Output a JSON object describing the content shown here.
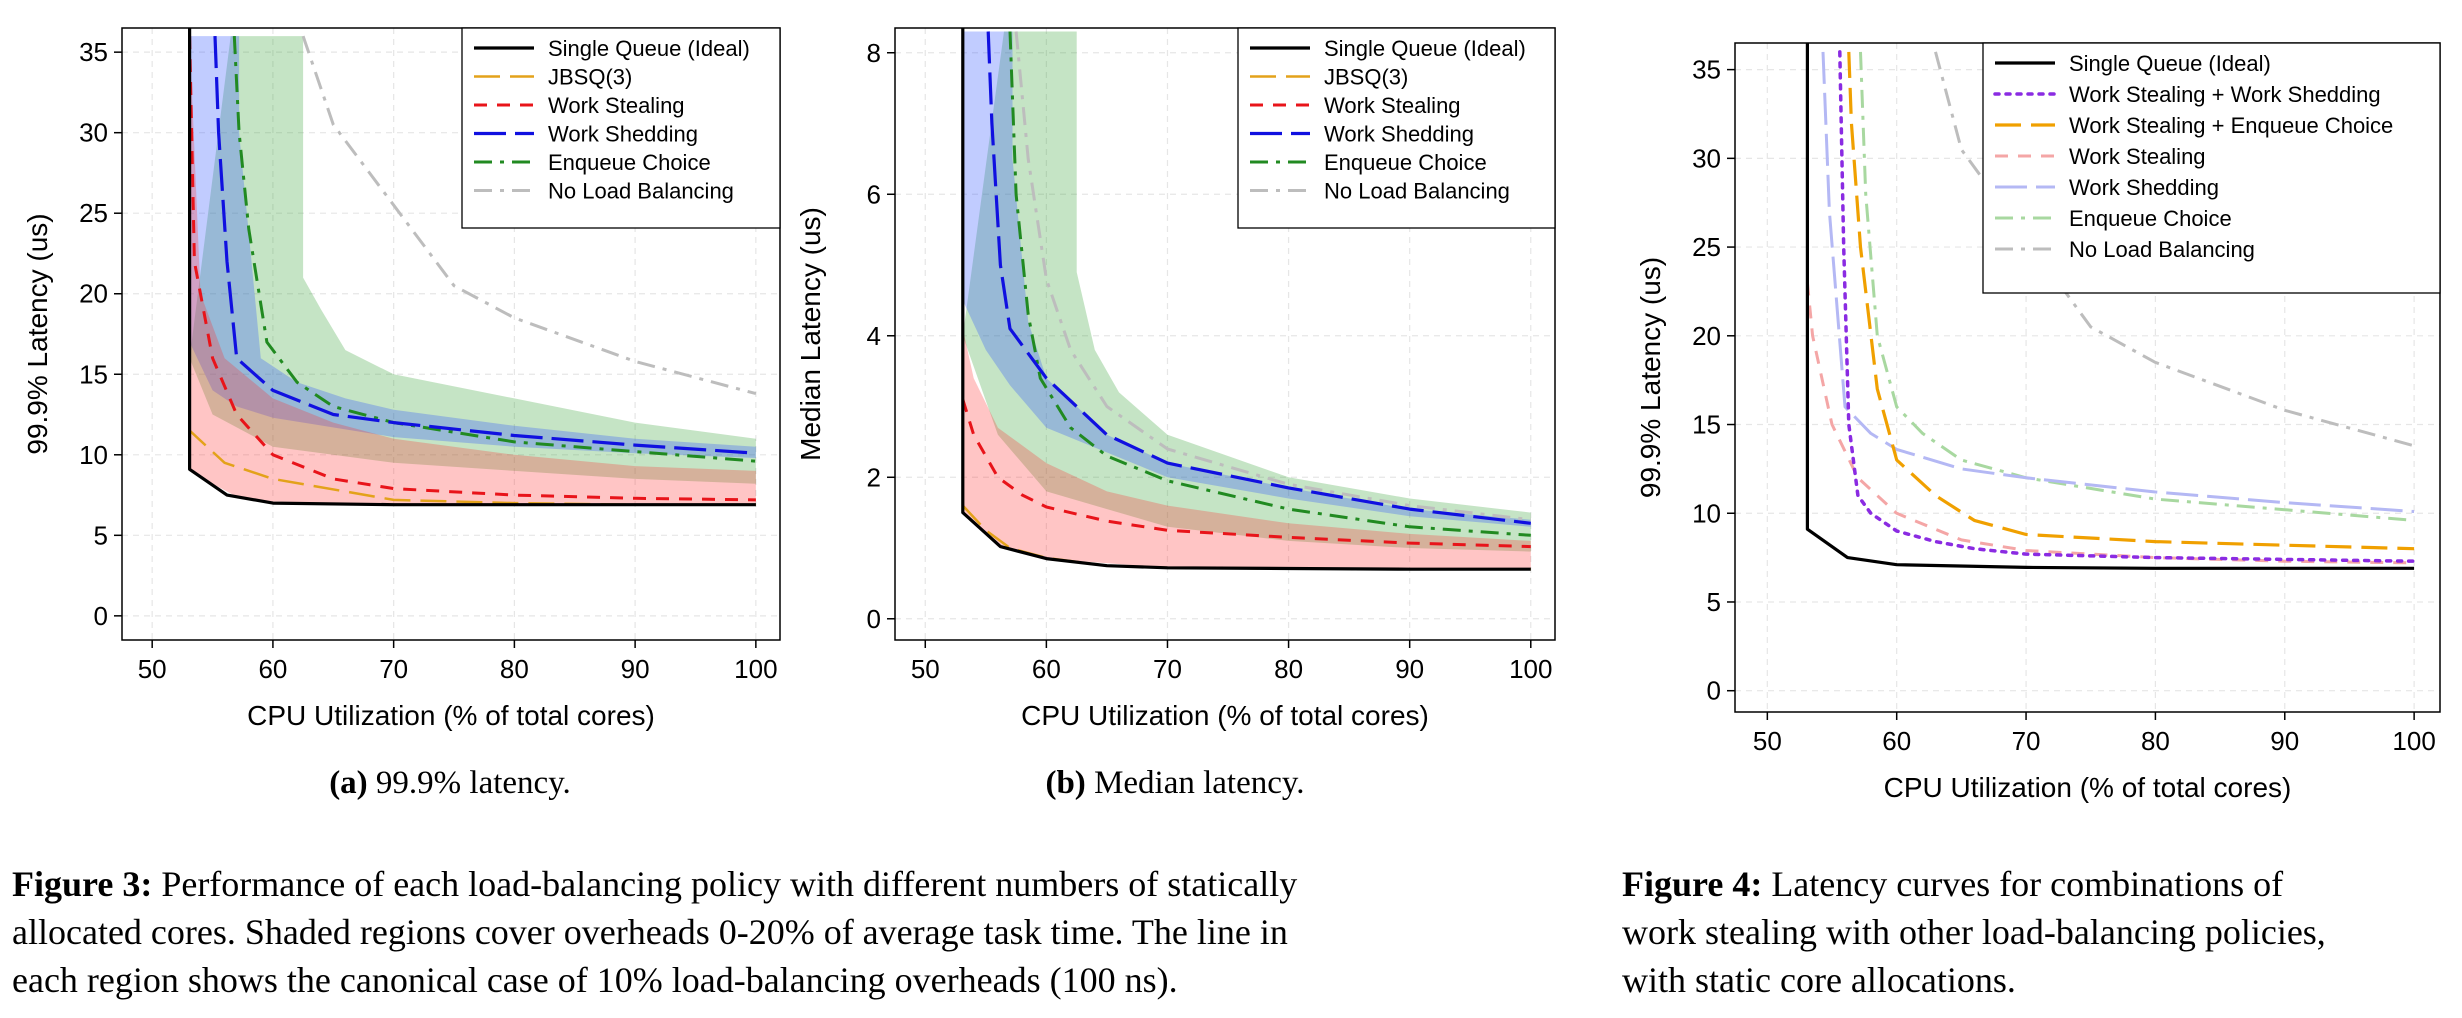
{
  "chart_data": [
    {
      "id": "fig3a",
      "type": "line",
      "xlabel": "CPU Utilization (% of total cores)",
      "ylabel": "99.9% Latency (us)",
      "xlim": [
        47.5,
        102
      ],
      "ylim": [
        -1.5,
        36.5
      ],
      "xticks": [
        50,
        60,
        70,
        80,
        90,
        100
      ],
      "yticks": [
        0,
        5,
        10,
        15,
        20,
        25,
        30,
        35
      ],
      "grid": true,
      "legend_position": "top-right",
      "series": [
        {
          "name": "Single Queue (Ideal)",
          "color": "#000000",
          "dash": "solid",
          "width": 3.2,
          "x": [
            53.1,
            53.1,
            56.2,
            60,
            70,
            80,
            90,
            100
          ],
          "y": [
            40,
            9.1,
            7.5,
            7.0,
            6.9,
            6.9,
            6.9,
            6.9
          ]
        },
        {
          "name": "JBSQ(3)",
          "color": "#E3A21A",
          "dash": "long",
          "width": 2.5,
          "x": [
            53.1,
            53.1,
            56,
            60,
            70,
            80,
            90,
            100
          ],
          "y": [
            14,
            11.5,
            9.5,
            8.5,
            7.2,
            7.0,
            6.9,
            6.9
          ]
        },
        {
          "name": "Work Stealing",
          "color": "#E8141A",
          "dash": "medium",
          "width": 3,
          "x": [
            53.1,
            53.5,
            55,
            57,
            60,
            65,
            70,
            80,
            90,
            100
          ],
          "y": [
            36,
            22,
            16,
            12.5,
            10,
            8.5,
            7.9,
            7.5,
            7.3,
            7.2
          ]
        },
        {
          "name": "Work Shedding",
          "color": "#1010E0",
          "dash": "longdash",
          "width": 3.2,
          "x": [
            55.2,
            55.5,
            56.2,
            57,
            60,
            65,
            70,
            80,
            90,
            100
          ],
          "y": [
            36,
            30,
            22,
            16,
            14,
            12.5,
            12.0,
            11.2,
            10.6,
            10.1
          ]
        },
        {
          "name": "Enqueue Choice",
          "color": "#218A21",
          "dash": "dashdot",
          "width": 3,
          "x": [
            56.8,
            57.2,
            58,
            59.5,
            62,
            65,
            70,
            80,
            90,
            100
          ],
          "y": [
            36,
            30,
            24,
            17,
            14.5,
            13,
            12,
            10.8,
            10.2,
            9.6
          ]
        },
        {
          "name": "No Load Balancing",
          "color": "#BDBDBD",
          "dash": "dashdot",
          "width": 3,
          "x": [
            62.5,
            65,
            70,
            75,
            80,
            90,
            100
          ],
          "y": [
            36,
            30.5,
            25.5,
            20.5,
            18.5,
            15.8,
            13.8
          ]
        }
      ],
      "bands": [
        {
          "series": "Enqueue Choice",
          "color": "#2E9E2E",
          "opacity": 0.28,
          "upper_x": [
            56.5,
            62.5,
            62.5,
            64,
            66,
            70,
            80,
            90,
            100
          ],
          "upper_y": [
            36,
            36,
            21,
            19,
            16.5,
            15,
            13.5,
            12,
            11
          ],
          "lower_x": [
            100,
            90,
            80,
            70,
            60,
            55,
            53.1
          ],
          "lower_y": [
            8.2,
            8.5,
            9.0,
            9.5,
            10.5,
            12.5,
            16
          ]
        },
        {
          "series": "Work Shedding",
          "color": "#3355FF",
          "opacity": 0.3,
          "upper_x": [
            53.1,
            57.2,
            57.2,
            59,
            62,
            66,
            70,
            80,
            90,
            100
          ],
          "upper_y": [
            36,
            36,
            30,
            16,
            14.5,
            13.5,
            12.8,
            11.8,
            11,
            10.5
          ],
          "lower_x": [
            100,
            90,
            80,
            70,
            60,
            57,
            55,
            53.1
          ],
          "lower_y": [
            9.8,
            10.1,
            10.5,
            11.1,
            12.3,
            13,
            14,
            17
          ]
        },
        {
          "series": "Work Stealing",
          "color": "#FF3030",
          "opacity": 0.28,
          "upper_x": [
            53.1,
            54,
            56,
            60,
            65,
            70,
            80,
            90,
            100
          ],
          "upper_y": [
            36,
            20,
            16,
            13.5,
            12,
            11,
            10,
            9.3,
            9.0
          ],
          "lower_x": [
            100,
            90,
            80,
            70,
            60,
            57,
            55,
            53.1
          ],
          "lower_y": [
            6.9,
            6.9,
            6.9,
            6.9,
            7.1,
            7.4,
            8.2,
            9.1
          ]
        }
      ]
    },
    {
      "id": "fig3b",
      "type": "line",
      "xlabel": "CPU Utilization (% of total cores)",
      "ylabel": "Median Latency (us)",
      "xlim": [
        47.5,
        102
      ],
      "ylim": [
        -0.3,
        8.35
      ],
      "xticks": [
        50,
        60,
        70,
        80,
        90,
        100
      ],
      "yticks": [
        0,
        2,
        4,
        6,
        8
      ],
      "grid": true,
      "legend_position": "top-right",
      "series": [
        {
          "name": "Single Queue (Ideal)",
          "color": "#000000",
          "dash": "solid",
          "width": 3.2,
          "x": [
            53.1,
            53.1,
            56.2,
            60,
            65,
            70,
            80,
            90,
            100
          ],
          "y": [
            9,
            1.5,
            1.02,
            0.85,
            0.75,
            0.72,
            0.71,
            0.7,
            0.7
          ]
        },
        {
          "name": "JBSQ(3)",
          "color": "#E3A21A",
          "dash": "long",
          "width": 2.5,
          "x": [
            53.1,
            55,
            57,
            60,
            65,
            70,
            80,
            90,
            100
          ],
          "y": [
            1.6,
            1.25,
            1.0,
            0.86,
            0.75,
            0.72,
            0.71,
            0.7,
            0.7
          ]
        },
        {
          "name": "Work Stealing",
          "color": "#E8141A",
          "dash": "medium",
          "width": 3,
          "x": [
            53.1,
            54,
            56,
            58,
            60,
            65,
            70,
            80,
            90,
            100
          ],
          "y": [
            3.1,
            2.6,
            2.0,
            1.75,
            1.58,
            1.38,
            1.25,
            1.15,
            1.07,
            1.02
          ]
        },
        {
          "name": "Work Shedding",
          "color": "#1010E0",
          "dash": "longdash",
          "width": 3.2,
          "x": [
            55.2,
            55.5,
            56.2,
            57,
            60,
            65,
            70,
            80,
            90,
            100
          ],
          "y": [
            8.3,
            7,
            5,
            4.1,
            3.4,
            2.6,
            2.2,
            1.85,
            1.55,
            1.35
          ]
        },
        {
          "name": "Enqueue Choice",
          "color": "#218A21",
          "dash": "dashdot",
          "width": 3,
          "x": [
            57,
            57.5,
            58.5,
            59.5,
            62,
            65,
            70,
            80,
            90,
            100
          ],
          "y": [
            8.3,
            6,
            4.3,
            3.4,
            2.7,
            2.3,
            1.95,
            1.55,
            1.3,
            1.18
          ]
        },
        {
          "name": "No Load Balancing",
          "color": "#BDBDBD",
          "dash": "dashdot",
          "width": 3,
          "x": [
            57.5,
            58.5,
            60,
            62,
            65,
            70,
            80,
            90,
            100
          ],
          "y": [
            8.3,
            6.5,
            4.8,
            3.8,
            3.0,
            2.4,
            1.9,
            1.6,
            1.4
          ]
        }
      ],
      "bands": [
        {
          "series": "Enqueue Choice",
          "color": "#2E9E2E",
          "opacity": 0.28,
          "upper_x": [
            56.5,
            62.5,
            62.5,
            64,
            66,
            70,
            80,
            90,
            100
          ],
          "upper_y": [
            8.3,
            8.3,
            4.9,
            3.8,
            3.2,
            2.6,
            2.0,
            1.7,
            1.5
          ],
          "lower_x": [
            100,
            90,
            80,
            70,
            60,
            56,
            53.1
          ],
          "lower_y": [
            0.95,
            1.0,
            1.1,
            1.3,
            1.8,
            2.6,
            4.0
          ]
        },
        {
          "series": "Work Shedding",
          "color": "#3355FF",
          "opacity": 0.3,
          "upper_x": [
            53.1,
            57.2,
            57.2,
            58.5,
            60,
            65,
            70,
            80,
            90,
            100
          ],
          "upper_y": [
            8.3,
            8.3,
            6.5,
            4.2,
            3.4,
            2.6,
            2.2,
            1.85,
            1.55,
            1.4
          ],
          "lower_x": [
            100,
            90,
            80,
            70,
            60,
            57,
            55,
            53.1
          ],
          "lower_y": [
            1.3,
            1.45,
            1.7,
            2.0,
            2.7,
            3.3,
            3.8,
            4.5
          ]
        },
        {
          "series": "Work Stealing",
          "color": "#FF3030",
          "opacity": 0.28,
          "upper_x": [
            53.1,
            54,
            56,
            60,
            65,
            70,
            80,
            90,
            100
          ],
          "upper_y": [
            4.1,
            3.4,
            2.7,
            2.2,
            1.8,
            1.6,
            1.35,
            1.2,
            1.1
          ],
          "lower_x": [
            100,
            90,
            80,
            70,
            60,
            56,
            53.1
          ],
          "lower_y": [
            0.7,
            0.7,
            0.71,
            0.72,
            0.85,
            1.02,
            1.5
          ]
        }
      ]
    },
    {
      "id": "fig4",
      "type": "line",
      "xlabel": "CPU Utilization (% of total cores)",
      "ylabel": "99.9% Latency (us)",
      "xlim": [
        47.5,
        102
      ],
      "ylim": [
        -1.2,
        36.5
      ],
      "xticks": [
        50,
        60,
        70,
        80,
        90,
        100
      ],
      "yticks": [
        0,
        5,
        10,
        15,
        20,
        25,
        30,
        35
      ],
      "grid": true,
      "legend_position": "top-right",
      "series": [
        {
          "name": "Single Queue (Ideal)",
          "color": "#000000",
          "dash": "solid",
          "width": 3.2,
          "x": [
            53.1,
            53.1,
            56.2,
            60,
            70,
            80,
            90,
            100
          ],
          "y": [
            40,
            9.1,
            7.5,
            7.1,
            6.95,
            6.9,
            6.9,
            6.9
          ]
        },
        {
          "name": "Work Stealing + Work Shedding",
          "color": "#8A2BE2",
          "dash": "dotted",
          "width": 3.5,
          "x": [
            55.6,
            55.9,
            56.3,
            57,
            58,
            60,
            63,
            66,
            70,
            80,
            90,
            100
          ],
          "y": [
            36,
            25,
            15,
            11,
            10,
            9.0,
            8.4,
            8.0,
            7.7,
            7.5,
            7.4,
            7.3
          ]
        },
        {
          "name": "Work Stealing + Enqueue Choice",
          "color": "#F0A000",
          "dash": "long",
          "width": 3.2,
          "x": [
            56.3,
            56.5,
            57.2,
            58.5,
            60,
            63,
            66,
            70,
            80,
            90,
            100
          ],
          "y": [
            36,
            32,
            25,
            17,
            13,
            11,
            9.6,
            8.8,
            8.4,
            8.2,
            8.0
          ]
        },
        {
          "name": "Work Stealing",
          "color": "#F4A6A6",
          "dash": "medium",
          "width": 3,
          "x": [
            53.1,
            53.5,
            55,
            57,
            60,
            65,
            70,
            80,
            90,
            100
          ],
          "y": [
            23,
            20,
            15,
            12,
            10,
            8.5,
            7.9,
            7.5,
            7.3,
            7.2
          ]
        },
        {
          "name": "Work Shedding",
          "color": "#B4B8F4",
          "dash": "longdash",
          "width": 3,
          "x": [
            54.3,
            54.8,
            56,
            58,
            60,
            65,
            70,
            80,
            90,
            100
          ],
          "y": [
            36,
            27,
            16,
            14.5,
            13.6,
            12.5,
            12.0,
            11.2,
            10.6,
            10.1
          ]
        },
        {
          "name": "Enqueue Choice",
          "color": "#A8D8A0",
          "dash": "dashdot",
          "width": 3,
          "x": [
            57.2,
            57.6,
            58.5,
            60,
            62,
            65,
            70,
            80,
            90,
            100
          ],
          "y": [
            36,
            28,
            20,
            16,
            14.5,
            13,
            12,
            10.8,
            10.2,
            9.6
          ]
        },
        {
          "name": "No Load Balancing",
          "color": "#BDBDBD",
          "dash": "dashdot",
          "width": 3,
          "x": [
            63,
            65,
            70,
            75,
            80,
            90,
            100
          ],
          "y": [
            36,
            30.5,
            25.5,
            20.5,
            18.5,
            15.8,
            13.8
          ]
        }
      ],
      "bands": []
    }
  ],
  "captions": {
    "sub_a_label": "(a)",
    "sub_a_text": " 99.9% latency.",
    "sub_b_label": "(b)",
    "sub_b_text": " Median latency.",
    "fig3_label": "Figure 3:",
    "fig3_line1": " Performance of each load-balancing policy with different numbers of statically",
    "fig3_line2": "allocated cores. Shaded regions cover overheads 0-20% of average task time. The line in",
    "fig3_line3": "each region shows the canonical case of 10% load-balancing overheads (100 ns).",
    "fig4_label": "Figure 4:",
    "fig4_line1": " Latency curves for combinations of",
    "fig4_line2": "work stealing with other load-balancing policies,",
    "fig4_line3": "with static core allocations."
  }
}
